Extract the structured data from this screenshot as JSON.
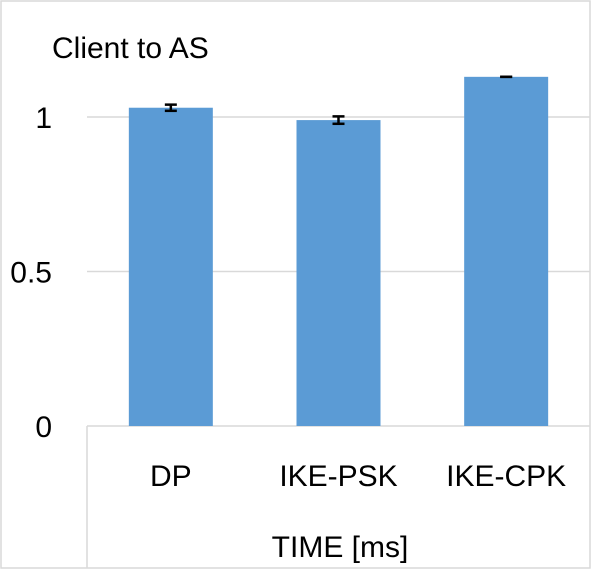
{
  "chart_data": {
    "type": "bar",
    "title": "Client to AS",
    "xlabel": "TIME [ms]",
    "ylabel": "",
    "categories": [
      "DP",
      "IKE-PSK",
      "IKE-CPK"
    ],
    "values": [
      1.03,
      0.99,
      1.13
    ],
    "errors": [
      0.01,
      0.012,
      0.0
    ],
    "ylim": [
      0,
      1.2
    ],
    "yticks": [
      {
        "value": 0,
        "label": "0"
      },
      {
        "value": 0.5,
        "label": "0.5"
      },
      {
        "value": 1,
        "label": "1"
      }
    ],
    "grid": true,
    "bar_color": "#5b9bd5",
    "legend": "none"
  }
}
